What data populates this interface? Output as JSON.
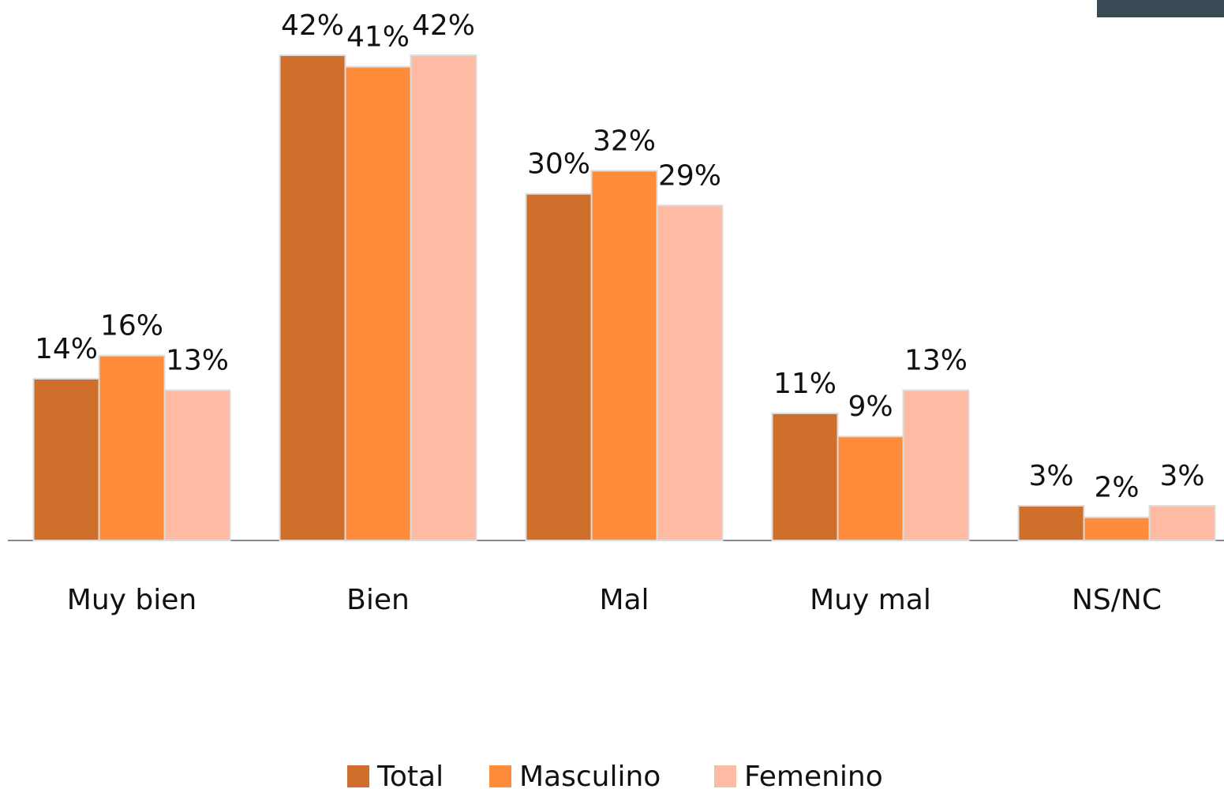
{
  "chart_data": {
    "type": "bar",
    "categories": [
      "Muy bien",
      "Bien",
      "Mal",
      "Muy mal",
      "NS/NC"
    ],
    "series": [
      {
        "name": "Total",
        "color": "#d06e2c",
        "values": [
          14,
          42,
          30,
          11,
          3
        ],
        "value_labels": [
          "14%",
          "42%",
          "30%",
          "11%",
          "3%"
        ]
      },
      {
        "name": "Masculino",
        "color": "#ff8c3a",
        "values": [
          16,
          41,
          32,
          9,
          2
        ],
        "value_labels": [
          "16%",
          "41%",
          "32%",
          "9%",
          "2%"
        ]
      },
      {
        "name": "Femenino",
        "color": "#fdbba3",
        "values": [
          13,
          42,
          29,
          13,
          3
        ],
        "value_labels": [
          "13%",
          "42%",
          "29%",
          "13%",
          "3%"
        ]
      }
    ],
    "legend": "bottom"
  }
}
